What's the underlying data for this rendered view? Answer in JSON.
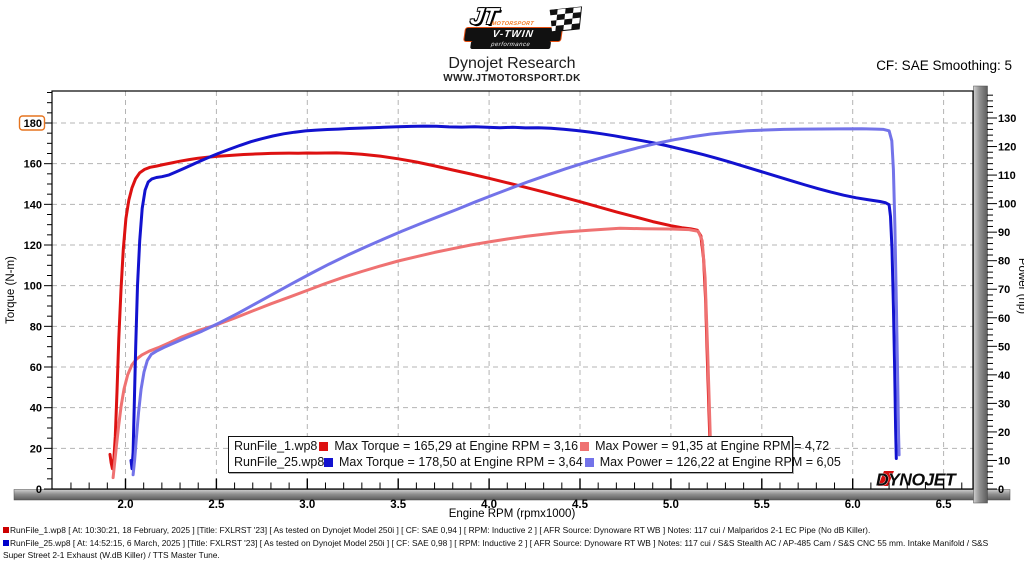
{
  "header": {
    "title": "Dynojet Research",
    "website": "WWW.JTMOTORSPORT.DK",
    "smoothing": "CF: SAE Smoothing: 5",
    "logo": {
      "jt": "JT",
      "motorsport": "MOTORSPORT",
      "vtwin": "V-TWIN",
      "performance": "performance"
    }
  },
  "watermark": "DYNOJET",
  "chart_data": {
    "type": "line",
    "xlabel": "Engine RPM (rpmx1000)",
    "ylabel_left": "Torque (N-m)",
    "ylabel_right": "Power (hp)",
    "xlim": [
      1.58,
      6.66
    ],
    "ylim_left": [
      0,
      195
    ],
    "ylim_right": [
      0,
      139
    ],
    "x_ticks": [
      2.0,
      2.5,
      3.0,
      3.5,
      4.0,
      4.5,
      5.0,
      5.5,
      6.0,
      6.5
    ],
    "y_ticks_left": [
      0,
      20,
      40,
      60,
      80,
      100,
      120,
      140,
      160,
      180
    ],
    "y_ticks_right": [
      0,
      10,
      20,
      30,
      40,
      50,
      60,
      70,
      80,
      90,
      100,
      110,
      120,
      130
    ],
    "highlighted_left_tick": 180,
    "grid": true,
    "legend_position": "bottom-center",
    "series": [
      {
        "id": "runfile1-torque",
        "name": "RunFile_1.wp8 Torque (N-m)",
        "axis": "left",
        "color": "#dd1111",
        "points": [
          [
            1.915,
            17
          ],
          [
            1.921,
            13
          ],
          [
            1.928,
            10
          ],
          [
            1.936,
            15
          ],
          [
            1.944,
            26
          ],
          [
            1.953,
            48
          ],
          [
            1.963,
            74
          ],
          [
            1.975,
            98
          ],
          [
            1.988,
            118
          ],
          [
            2.002,
            133
          ],
          [
            2.018,
            142
          ],
          [
            2.035,
            148
          ],
          [
            2.055,
            152.5
          ],
          [
            2.078,
            155.5
          ],
          [
            2.105,
            157.2
          ],
          [
            2.135,
            158.2
          ],
          [
            2.17,
            158.8
          ],
          [
            2.21,
            159.6
          ],
          [
            2.255,
            160.4
          ],
          [
            2.3,
            161.2
          ],
          [
            2.35,
            162
          ],
          [
            2.4,
            162.7
          ],
          [
            2.45,
            163.2
          ],
          [
            2.5,
            163.6
          ],
          [
            2.55,
            163.9
          ],
          [
            2.6,
            164.2
          ],
          [
            2.65,
            164.5
          ],
          [
            2.7,
            164.7
          ],
          [
            2.75,
            164.9
          ],
          [
            2.8,
            165.05
          ],
          [
            2.85,
            165.15
          ],
          [
            2.9,
            165.2
          ],
          [
            2.95,
            165.15
          ],
          [
            3.0,
            165.25
          ],
          [
            3.05,
            165.2
          ],
          [
            3.1,
            165.27
          ],
          [
            3.16,
            165.29
          ],
          [
            3.23,
            165.05
          ],
          [
            3.3,
            164.6
          ],
          [
            3.4,
            163.7
          ],
          [
            3.5,
            162.4
          ],
          [
            3.6,
            160.8
          ],
          [
            3.7,
            158.9
          ],
          [
            3.8,
            156.9
          ],
          [
            3.9,
            154.9
          ],
          [
            4.0,
            152.8
          ],
          [
            4.1,
            150.6
          ],
          [
            4.2,
            148.4
          ],
          [
            4.3,
            146.1
          ],
          [
            4.4,
            143.7
          ],
          [
            4.5,
            141.3
          ],
          [
            4.6,
            138.8
          ],
          [
            4.7,
            136.3
          ],
          [
            4.8,
            133.9
          ],
          [
            4.9,
            131.5
          ],
          [
            5.0,
            129.5
          ],
          [
            5.06,
            128.5
          ],
          [
            5.11,
            127.9
          ],
          [
            5.145,
            127.3
          ],
          [
            5.165,
            124.5
          ],
          [
            5.18,
            113
          ],
          [
            5.191,
            93
          ],
          [
            5.201,
            63
          ],
          [
            5.209,
            39
          ],
          [
            5.215,
            22
          ],
          [
            5.218,
            16
          ]
        ]
      },
      {
        "id": "runfile1-power",
        "name": "RunFile_1.wp8 Power (hp)",
        "axis": "right",
        "color": "#ef7272",
        "points": [
          [
            1.932,
            4
          ],
          [
            1.94,
            9
          ],
          [
            1.95,
            15
          ],
          [
            1.962,
            22
          ],
          [
            1.976,
            29
          ],
          [
            1.992,
            35
          ],
          [
            2.012,
            40
          ],
          [
            2.035,
            43.5
          ],
          [
            2.06,
            45.5
          ],
          [
            2.09,
            47
          ],
          [
            2.13,
            48.3
          ],
          [
            2.18,
            49.5
          ],
          [
            2.24,
            51.2
          ],
          [
            2.31,
            53.3
          ],
          [
            2.4,
            55.5
          ],
          [
            2.5,
            57.5
          ],
          [
            2.6,
            59.9
          ],
          [
            2.7,
            62.4
          ],
          [
            2.8,
            64.9
          ],
          [
            2.9,
            67.2
          ],
          [
            3.0,
            69.6
          ],
          [
            3.1,
            72
          ],
          [
            3.2,
            74.2
          ],
          [
            3.3,
            76.2
          ],
          [
            3.4,
            78.1
          ],
          [
            3.5,
            79.9
          ],
          [
            3.6,
            81.4
          ],
          [
            3.7,
            82.9
          ],
          [
            3.8,
            84.2
          ],
          [
            3.9,
            85.5
          ],
          [
            4.0,
            86.6
          ],
          [
            4.1,
            87.6
          ],
          [
            4.2,
            88.5
          ],
          [
            4.3,
            89.3
          ],
          [
            4.4,
            90
          ],
          [
            4.55,
            90.7
          ],
          [
            4.72,
            91.35
          ],
          [
            4.85,
            91.2
          ],
          [
            5.0,
            91.1
          ],
          [
            5.1,
            90.9
          ],
          [
            5.15,
            90.3
          ],
          [
            5.172,
            87
          ],
          [
            5.188,
            74
          ],
          [
            5.2,
            52
          ],
          [
            5.21,
            32
          ],
          [
            5.217,
            17
          ],
          [
            5.22,
            13
          ]
        ]
      },
      {
        "id": "runfile25-torque",
        "name": "RunFile_25.wp8 Torque (N-m)",
        "axis": "left",
        "color": "#1212cf",
        "points": [
          [
            2.03,
            14
          ],
          [
            2.036,
            10
          ],
          [
            2.042,
            18
          ],
          [
            2.048,
            40
          ],
          [
            2.056,
            70
          ],
          [
            2.066,
            100
          ],
          [
            2.078,
            122
          ],
          [
            2.092,
            138
          ],
          [
            2.108,
            147
          ],
          [
            2.125,
            151
          ],
          [
            2.145,
            152.5
          ],
          [
            2.17,
            153.2
          ],
          [
            2.2,
            153.6
          ],
          [
            2.24,
            154.5
          ],
          [
            2.28,
            156
          ],
          [
            2.33,
            158
          ],
          [
            2.39,
            160.5
          ],
          [
            2.45,
            162.8
          ],
          [
            2.51,
            165
          ],
          [
            2.57,
            167
          ],
          [
            2.63,
            169
          ],
          [
            2.69,
            170.8
          ],
          [
            2.75,
            172.3
          ],
          [
            2.81,
            173.6
          ],
          [
            2.87,
            174.7
          ],
          [
            2.93,
            175.5
          ],
          [
            2.99,
            176.1
          ],
          [
            3.05,
            176.5
          ],
          [
            3.11,
            176.8
          ],
          [
            3.17,
            177
          ],
          [
            3.23,
            177.3
          ],
          [
            3.29,
            177.5
          ],
          [
            3.35,
            177.7
          ],
          [
            3.42,
            177.9
          ],
          [
            3.5,
            178.2
          ],
          [
            3.57,
            178.35
          ],
          [
            3.64,
            178.5
          ],
          [
            3.71,
            178.4
          ],
          [
            3.78,
            178.1
          ],
          [
            3.85,
            178
          ],
          [
            3.92,
            178.2
          ],
          [
            3.99,
            177.9
          ],
          [
            4.06,
            177.7
          ],
          [
            4.13,
            177.9
          ],
          [
            4.2,
            177.6
          ],
          [
            4.27,
            177.7
          ],
          [
            4.34,
            177.4
          ],
          [
            4.41,
            176.9
          ],
          [
            4.48,
            176.3
          ],
          [
            4.55,
            175.6
          ],
          [
            4.62,
            174.7
          ],
          [
            4.69,
            173.7
          ],
          [
            4.76,
            172.6
          ],
          [
            4.83,
            171.5
          ],
          [
            4.9,
            170.3
          ],
          [
            4.97,
            169
          ],
          [
            5.04,
            167.5
          ],
          [
            5.11,
            166
          ],
          [
            5.18,
            164.4
          ],
          [
            5.25,
            162.7
          ],
          [
            5.32,
            160.9
          ],
          [
            5.39,
            159
          ],
          [
            5.46,
            157.1
          ],
          [
            5.53,
            155.2
          ],
          [
            5.6,
            153.3
          ],
          [
            5.67,
            151.4
          ],
          [
            5.74,
            149.5
          ],
          [
            5.81,
            147.7
          ],
          [
            5.88,
            146
          ],
          [
            5.95,
            144.5
          ],
          [
            6.02,
            143.2
          ],
          [
            6.09,
            142.2
          ],
          [
            6.15,
            141.4
          ],
          [
            6.18,
            140.8
          ],
          [
            6.2,
            139.8
          ],
          [
            6.208,
            134
          ],
          [
            6.216,
            118
          ],
          [
            6.224,
            90
          ],
          [
            6.231,
            58
          ],
          [
            6.236,
            30
          ],
          [
            6.24,
            15
          ]
        ]
      },
      {
        "id": "runfile25-power",
        "name": "RunFile_25.wp8 Power (hp)",
        "axis": "right",
        "color": "#7373e9",
        "points": [
          [
            2.042,
            5
          ],
          [
            2.05,
            10
          ],
          [
            2.06,
            18
          ],
          [
            2.072,
            27
          ],
          [
            2.086,
            35
          ],
          [
            2.102,
            41
          ],
          [
            2.12,
            45
          ],
          [
            2.142,
            47.2
          ],
          [
            2.17,
            48.3
          ],
          [
            2.21,
            49.6
          ],
          [
            2.26,
            51
          ],
          [
            2.33,
            52.9
          ],
          [
            2.42,
            55.3
          ],
          [
            2.52,
            58.3
          ],
          [
            2.62,
            61.6
          ],
          [
            2.72,
            65.1
          ],
          [
            2.82,
            68.6
          ],
          [
            2.92,
            72.1
          ],
          [
            3.02,
            75.5
          ],
          [
            3.12,
            78.8
          ],
          [
            3.22,
            81.9
          ],
          [
            3.32,
            84.8
          ],
          [
            3.42,
            87.6
          ],
          [
            3.52,
            90.3
          ],
          [
            3.62,
            92.9
          ],
          [
            3.72,
            95.4
          ],
          [
            3.82,
            97.9
          ],
          [
            3.92,
            100.5
          ],
          [
            4.02,
            103
          ],
          [
            4.12,
            105.4
          ],
          [
            4.22,
            107.8
          ],
          [
            4.32,
            110
          ],
          [
            4.42,
            112.2
          ],
          [
            4.52,
            114.2
          ],
          [
            4.62,
            116.1
          ],
          [
            4.72,
            117.9
          ],
          [
            4.82,
            119.6
          ],
          [
            4.92,
            121.1
          ],
          [
            5.02,
            122.4
          ],
          [
            5.12,
            123.5
          ],
          [
            5.22,
            124.4
          ],
          [
            5.32,
            125
          ],
          [
            5.42,
            125.5
          ],
          [
            5.52,
            125.8
          ],
          [
            5.62,
            126
          ],
          [
            5.72,
            126.1
          ],
          [
            5.82,
            126.15
          ],
          [
            5.92,
            126.2
          ],
          [
            6.05,
            126.22
          ],
          [
            6.13,
            126.1
          ],
          [
            6.17,
            126
          ],
          [
            6.2,
            125.5
          ],
          [
            6.215,
            122
          ],
          [
            6.224,
            112
          ],
          [
            6.232,
            92
          ],
          [
            6.24,
            66
          ],
          [
            6.247,
            40
          ],
          [
            6.252,
            20
          ],
          [
            6.255,
            12
          ]
        ]
      }
    ],
    "runs": [
      {
        "file": "RunFile_1.wp8",
        "max_torque": "165,29",
        "max_torque_rpm": "3,16",
        "max_power": "91,35",
        "max_power_rpm": "4,72"
      },
      {
        "file": "RunFile_25.wp8",
        "max_torque": "178,50",
        "max_torque_rpm": "3,64",
        "max_power": "126,22",
        "max_power_rpm": "6,05"
      }
    ]
  },
  "legend": {
    "rows": [
      {
        "name": "RunFile_1.wp8",
        "torque_color": "#dd1111",
        "torque_text": "Max Torque = 165,29 at Engine RPM = 3,16",
        "power_color": "#ef7272",
        "power_text": "Max Power = 91,35 at Engine RPM = 4,72"
      },
      {
        "name": "RunFile_25.wp8",
        "torque_color": "#1212cf",
        "torque_text": "Max Torque = 178,50 at Engine RPM = 3,64",
        "power_color": "#7373e9",
        "power_text": "Max Power = 126,22 at Engine RPM = 6,05"
      }
    ]
  },
  "footer": {
    "lines": [
      {
        "bullet_color": "#cc0000",
        "text": "RunFile_1.wp8 [ At: 10:30:21, 18 February, 2025 ] [Title: FXLRST '23]  [ As tested on Dynojet Model 250i ] [ CF: SAE 0,94 ] [ RPM: Inductive 2 ] [ AFR Source: Dynoware RT WB ] Notes: 117 cui / Malparidos 2-1 EC Pipe (No dB Killer)."
      },
      {
        "bullet_color": "#0000cc",
        "text": "RunFile_25.wp8 [ At: 14:52:15, 6 March, 2025 ] [Title: FXLRST '23]  [ As tested on Dynojet Model 250i ] [ CF: SAE 0,98 ] [ RPM: Inductive 2 ] [ AFR Source: Dynoware RT WB ] Notes: 117 cui / S&S Stealth AC / AP-485 Cam / S&S CNC 55 mm. Intake Manifold / S&S"
      },
      {
        "bullet_color": "",
        "text": "Super Street 2-1 Exhaust (W.dB Killer) / TTS Master Tune."
      }
    ]
  }
}
